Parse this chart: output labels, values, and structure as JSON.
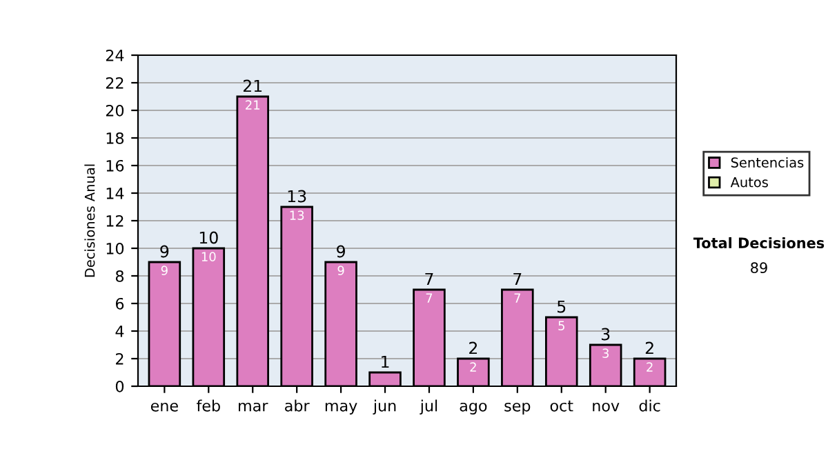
{
  "chart_data": {
    "type": "bar",
    "ylabel": "Decisiones Anual",
    "categories": [
      "ene",
      "feb",
      "mar",
      "abr",
      "may",
      "jun",
      "jul",
      "ago",
      "sep",
      "oct",
      "nov",
      "dic"
    ],
    "series": [
      {
        "name": "Sentencias",
        "color": "#dd7ec0",
        "values": [
          9,
          10,
          21,
          13,
          9,
          1,
          7,
          2,
          7,
          5,
          3,
          2
        ],
        "value_labels": [
          "9",
          "10",
          "21",
          "13",
          "9",
          null,
          "7",
          "2",
          "7",
          "5",
          "3",
          "2"
        ]
      },
      {
        "name": "Autos",
        "color": "#e0eeaa",
        "values": [
          null,
          null,
          null,
          null,
          null,
          null,
          null,
          null,
          null,
          null,
          null,
          null
        ]
      }
    ],
    "totals": [
      "9",
      "10",
      "21",
      "13",
      "9",
      "1",
      "7",
      "2",
      "7",
      "5",
      "3",
      "2"
    ],
    "ylim": [
      0,
      24
    ],
    "yticks": [
      0,
      2,
      4,
      6,
      8,
      10,
      12,
      14,
      16,
      18,
      20,
      22,
      24
    ],
    "grid": "y",
    "legend": "right",
    "annotations": [
      "Total Decisiones",
      "89"
    ]
  }
}
